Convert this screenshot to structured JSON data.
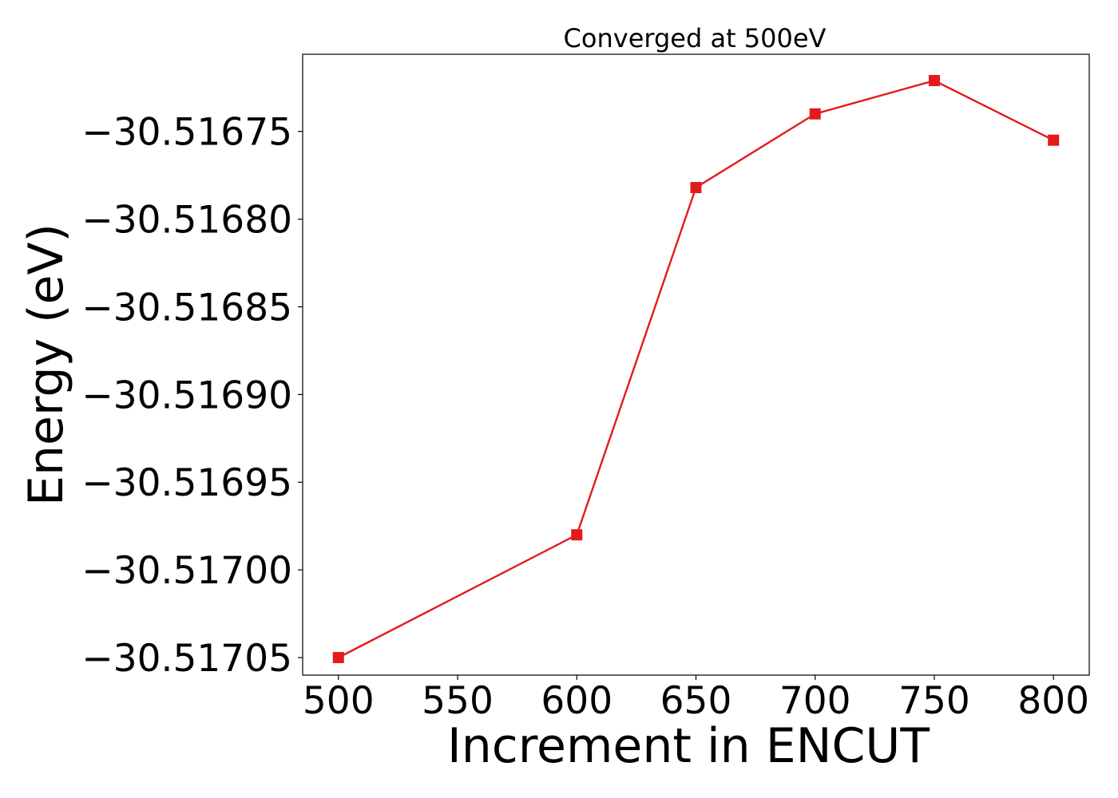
{
  "chart_data": {
    "type": "line",
    "title": "Converged at 500eV",
    "xlabel": "Increment in ENCUT",
    "ylabel": "Energy (eV)",
    "x": [
      500,
      600,
      650,
      700,
      750,
      800
    ],
    "series": [
      {
        "values": [
          -30.51705,
          -30.51698,
          -30.516782,
          -30.51674,
          -30.516721,
          -30.516755
        ],
        "color": "#e31a1c",
        "marker": "square"
      }
    ],
    "x_ticks": [
      500,
      550,
      600,
      650,
      700,
      750,
      800
    ],
    "x_tick_labels": [
      "500",
      "550",
      "600",
      "650",
      "700",
      "750",
      "800"
    ],
    "y_ticks": [
      -30.51675,
      -30.5168,
      -30.51685,
      -30.5169,
      -30.51695,
      -30.517,
      -30.51705
    ],
    "y_tick_labels": [
      "−30.51675",
      "−30.51680",
      "−30.51685",
      "−30.51690",
      "−30.51695",
      "−30.51700",
      "−30.51705"
    ],
    "xlim": [
      485,
      815
    ],
    "ylim": [
      -30.516706,
      -30.51706
    ],
    "grid": false,
    "legend": false
  }
}
